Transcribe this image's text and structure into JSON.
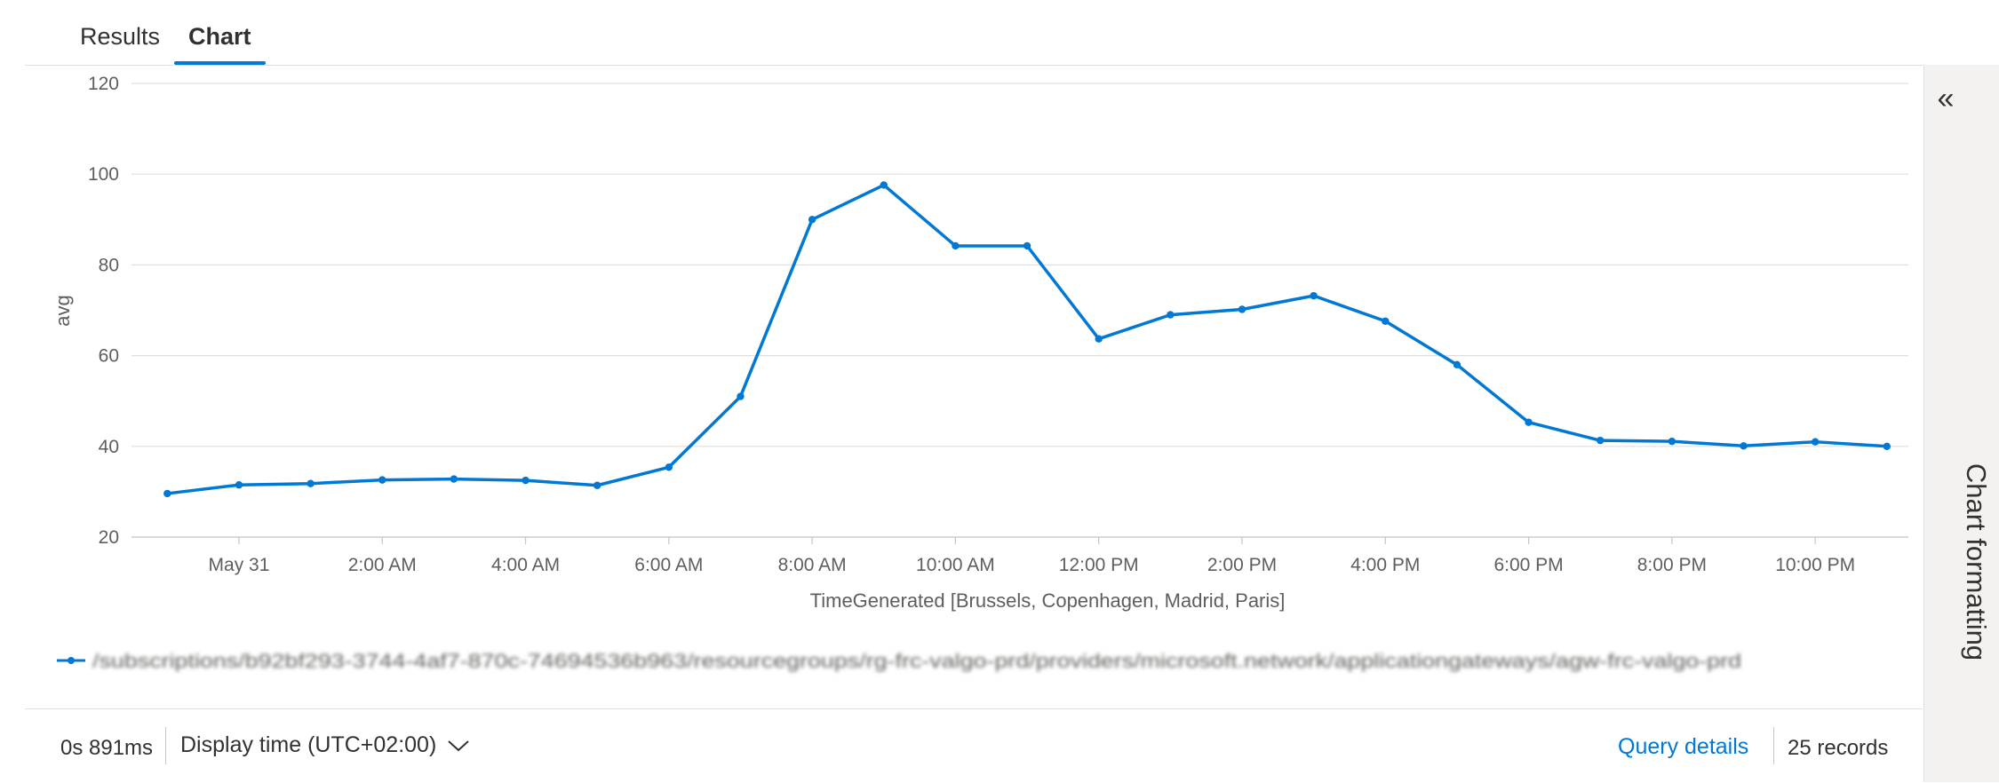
{
  "tabs": {
    "results": "Results",
    "chart": "Chart"
  },
  "side_panel": {
    "collapse_icon": "double-chevron-left-icon",
    "collapse_glyph": "«",
    "label": "Chart formatting"
  },
  "footer": {
    "elapsed": "0s 891ms",
    "display_time": "Display time (UTC+02:00)",
    "dropdown_icon": "chevron-down-icon",
    "query_details": "Query details",
    "records": "25 records"
  },
  "colors": {
    "series": "#0078d4",
    "grid": "#e1dfdd",
    "accent": "#0078d4"
  },
  "chart_data": {
    "type": "line",
    "xlabel": "TimeGenerated [Brussels, Copenhagen, Madrid, Paris]",
    "ylabel": "avg",
    "ylim": [
      20,
      120
    ],
    "yticks": [
      20,
      40,
      60,
      80,
      100,
      120
    ],
    "grid": true,
    "legend_position": "bottom-left",
    "x_tick_labels": [
      "May 31",
      "2:00 AM",
      "4:00 AM",
      "6:00 AM",
      "8:00 AM",
      "10:00 AM",
      "12:00 PM",
      "2:00 PM",
      "4:00 PM",
      "6:00 PM",
      "8:00 PM",
      "10:00 PM"
    ],
    "x_tick_hours": [
      0,
      2,
      4,
      6,
      8,
      10,
      12,
      14,
      16,
      18,
      20,
      22
    ],
    "x_range_hours": [
      -1.5,
      23.3
    ],
    "x_hours": [
      -1,
      0,
      1,
      2,
      3,
      4,
      5,
      6,
      7,
      8,
      9,
      10,
      11,
      12,
      13,
      14,
      15,
      16,
      17,
      18,
      19,
      20,
      21,
      22,
      23
    ],
    "series": [
      {
        "name": "/subscriptions/b92bf293-3744-4af7-870c-74694536b963/resourcegroups/rg-frc-valgo-prd/providers/microsoft.network/applicationgateways/agw-frc-valgo-prd",
        "values": [
          29.6,
          31.5,
          31.8,
          32.6,
          32.8,
          32.5,
          31.4,
          35.4,
          51.0,
          90.0,
          97.6,
          84.2,
          84.2,
          63.7,
          69.0,
          70.2,
          73.2,
          67.6,
          58.0,
          45.3,
          41.3,
          41.1,
          40.1,
          41.0,
          40.0
        ]
      }
    ]
  }
}
